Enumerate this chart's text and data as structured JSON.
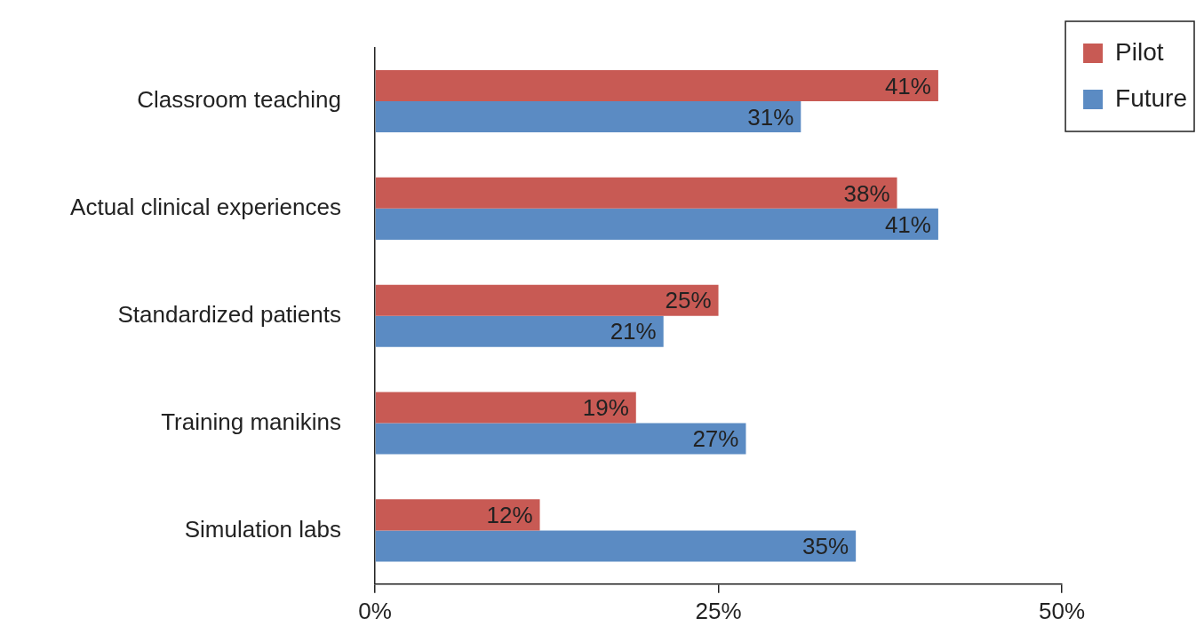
{
  "chart_data": {
    "type": "bar",
    "orientation": "horizontal",
    "categories": [
      "Classroom teaching",
      "Actual clinical experiences",
      "Standardized patients",
      "Training manikins",
      "Simulation labs"
    ],
    "series": [
      {
        "name": "Pilot",
        "color": "#c85a54",
        "values": [
          41,
          38,
          25,
          19,
          12
        ],
        "value_labels": [
          "41%",
          "38%",
          "25%",
          "19%",
          "12%"
        ]
      },
      {
        "name": "Future",
        "color": "#5b8bc3",
        "values": [
          31,
          41,
          21,
          27,
          35
        ],
        "value_labels": [
          "31%",
          "41%",
          "21%",
          "27%",
          "35%"
        ]
      }
    ],
    "xlim": [
      0,
      50
    ],
    "xticks": [
      {
        "value": 0,
        "label": "0%"
      },
      {
        "value": 25,
        "label": "25%"
      },
      {
        "value": 50,
        "label": "50%"
      }
    ],
    "grid": false,
    "legend": "top right"
  }
}
